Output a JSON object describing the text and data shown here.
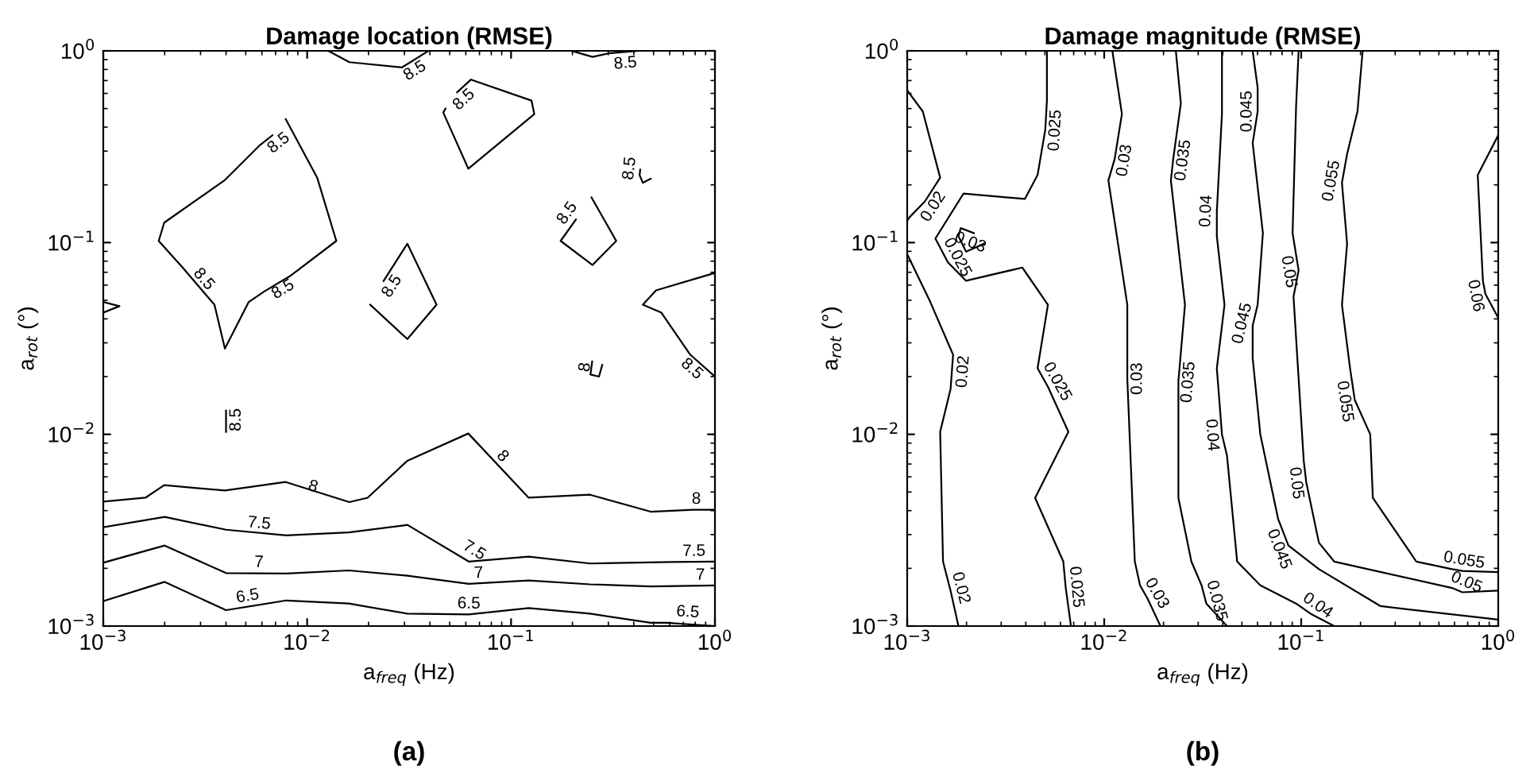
{
  "chart_data": [
    {
      "type": "line",
      "title": "Damage location (RMSE)",
      "xlabel": "a$_{freq}$ (Hz)",
      "ylabel": "a$_{rot}$ (°)",
      "log": "xy",
      "xlim": [
        0.001,
        1
      ],
      "ylim": [
        0.001,
        1
      ],
      "grid": false,
      "marker": "none",
      "line_style": "solid",
      "xticks": [
        {
          "value": 0.001,
          "label": "10$^{−3}$"
        },
        {
          "value": 0.01,
          "label": "10$^{−2}$"
        },
        {
          "value": 0.1,
          "label": "10$^{−1}$"
        },
        {
          "value": 1,
          "label": "10$^{0}$"
        }
      ],
      "yticks": [
        {
          "value": 0.001,
          "label": "10$^{−3}$"
        },
        {
          "value": 0.01,
          "label": "10$^{−2}$"
        },
        {
          "value": 0.1,
          "label": "10$^{−1}$"
        },
        {
          "value": 1,
          "label": "10$^{0}$"
        }
      ],
      "series": [
        {
          "color": "#000000",
          "x": [
            0.001,
            0.00161,
            0.00199,
            0.00395,
            0.00785,
            0.0161,
            0.0198,
            0.031,
            0.0617,
            0.122,
            0.244,
            0.484,
            0.782,
            1
          ],
          "values": [
            0.00446,
            0.00467,
            0.00543,
            0.00509,
            0.00564,
            0.00443,
            0.00467,
            0.00728,
            0.0101,
            0.00467,
            0.00484,
            0.00395,
            0.00404,
            0.00404
          ]
        },
        {
          "color": "#000000",
          "x": [
            0.001,
            0.002,
            0.004,
            0.0079,
            0.016,
            0.031,
            0.062,
            0.122,
            0.244,
            0.614,
            1
          ],
          "values": [
            0.00328,
            0.00371,
            0.00318,
            0.00297,
            0.00308,
            0.00337,
            0.00217,
            0.0023,
            0.00212,
            0.00216,
            0.00217
          ]
        },
        {
          "color": "#000000",
          "x": [
            0.001,
            0.002,
            0.004,
            0.0079,
            0.016,
            0.031,
            0.062,
            0.122,
            0.244,
            0.484,
            1
          ],
          "values": [
            0.00214,
            0.00263,
            0.00189,
            0.00188,
            0.00195,
            0.00183,
            0.00166,
            0.00173,
            0.00165,
            0.00161,
            0.00163
          ]
        },
        {
          "color": "#000000",
          "x": [
            0.001,
            0.002,
            0.004,
            0.0079,
            0.016,
            0.031,
            0.062,
            0.122,
            0.244,
            0.484,
            0.58,
            1
          ],
          "values": [
            0.00135,
            0.0017,
            0.00121,
            0.00136,
            0.00131,
            0.00116,
            0.00115,
            0.00124,
            0.00116,
            0.00104,
            0.00104,
            0.001
          ]
        },
        {
          "color": "#000000",
          "x": [
            0.00676,
            0.00582,
            0.00395,
            0.00199,
            0.00187,
            0.00245,
            0.00351,
            0.00395,
            0.00517,
            0.00618,
            0.00833,
            0.0139,
            0.0112,
            0.00785
          ],
          "values": [
            0.363,
            0.32,
            0.212,
            0.127,
            0.102,
            0.0741,
            0.0474,
            0.028,
            0.049,
            0.0557,
            0.0674,
            0.102,
            0.218,
            0.44
          ]
        },
        {
          "color": "#000000",
          "x": [
            0.0127,
            0.0161,
            0.0292,
            0.0394
          ],
          "values": [
            1,
            0.873,
            0.82,
            1
          ]
        },
        {
          "color": "#000000",
          "x": [
            0.198,
            0.251,
            0.3,
            0.42
          ],
          "values": [
            1,
            0.93,
            0.97,
            1
          ]
        },
        {
          "color": "#000000",
          "x": [
            0.0544,
            0.0636,
            0.126,
            0.13,
            0.0617,
            0.0465,
            0.0477
          ],
          "values": [
            0.608,
            0.708,
            0.55,
            0.468,
            0.243,
            0.477,
            0.5
          ]
        },
        {
          "color": "#000000",
          "x": [
            0.0237,
            0.031,
            0.0431,
            0.031,
            0.0204
          ],
          "values": [
            0.0631,
            0.0986,
            0.0474,
            0.0314,
            0.0474
          ]
        },
        {
          "color": "#000000",
          "x": [
            0.208,
            0.175,
            0.251,
            0.328,
            0.248
          ],
          "values": [
            0.132,
            0.102,
            0.0764,
            0.102,
            0.172
          ]
        },
        {
          "color": "#000000",
          "x": [
            0.43,
            0.427,
            0.443,
            0.484
          ],
          "values": [
            0.24,
            0.225,
            0.205,
            0.215
          ]
        },
        {
          "color": "#000000",
          "x": [
            1,
            0.514,
            0.443,
            0.546,
            0.757,
            1
          ],
          "values": [
            0.0695,
            0.0563,
            0.0474,
            0.0431,
            0.026,
            0.02
          ]
        },
        {
          "color": "#000000",
          "x": [
            0.001,
            0.0012,
            0.001
          ],
          "values": [
            0.049,
            0.0466,
            0.0431
          ]
        },
        {
          "color": "#000000",
          "x": [
            0.004,
            0.004
          ],
          "values": [
            0.0103,
            0.0133
          ]
        },
        {
          "color": "#000000",
          "x": [
            0.25,
            0.245,
            0.27,
            0.28
          ],
          "values": [
            0.024,
            0.0205,
            0.02,
            0.023
          ]
        }
      ],
      "annotations": [
        {
          "text": "8.5",
          "x": 0.00676,
          "y": 0.363
        },
        {
          "text": "8.5",
          "x": 0.00284,
          "y": 0.0593
        },
        {
          "text": "8.5",
          "x": 0.00718,
          "y": 0.0631
        },
        {
          "text": "8.5",
          "x": 0.0318,
          "y": 0.87
        },
        {
          "text": "8.5",
          "x": 0.36,
          "y": 0.97
        },
        {
          "text": "8.5",
          "x": 0.0544,
          "y": 0.608
        },
        {
          "text": "8.5",
          "x": 0.0237,
          "y": 0.0631
        },
        {
          "text": "8.5",
          "x": 0.208,
          "y": 0.132
        },
        {
          "text": "8.5",
          "x": 0.43,
          "y": 0.24
        },
        {
          "text": "8.5",
          "x": 0.004,
          "y": 0.0119
        },
        {
          "text": "8.5",
          "x": 0.83,
          "y": 0.024
        },
        {
          "text": "8",
          "x": 0.0103,
          "y": 0.00472
        },
        {
          "text": "8",
          "x": 0.0832,
          "y": 0.00704
        },
        {
          "text": "8",
          "x": 0.81,
          "y": 0.00404
        },
        {
          "text": "8",
          "x": 0.26,
          "y": 0.022
        },
        {
          "text": "7.5",
          "x": 0.00575,
          "y": 0.00302
        },
        {
          "text": "7.5",
          "x": 0.062,
          "y": 0.00222
        },
        {
          "text": "7.5",
          "x": 0.79,
          "y": 0.00216
        },
        {
          "text": "7",
          "x": 0.0058,
          "y": 0.00189
        },
        {
          "text": "7",
          "x": 0.0699,
          "y": 0.00166
        },
        {
          "text": "7",
          "x": 0.85,
          "y": 0.00162
        },
        {
          "text": "6.5",
          "x": 0.0052,
          "y": 0.00126
        },
        {
          "text": "6.5",
          "x": 0.062,
          "y": 0.00115
        },
        {
          "text": "6.5",
          "x": 0.73,
          "y": 0.00104
        },
        "(a)"
      ]
    },
    {
      "type": "line",
      "title": "Damage magnitude (RMSE)",
      "xlabel": "a$_{freq}$ (Hz)",
      "ylabel": "a$_{rot}$ (°)",
      "log": "xy",
      "xlim": [
        0.001,
        1
      ],
      "ylim": [
        0.001,
        1
      ],
      "grid": false,
      "marker": "none",
      "line_style": "solid",
      "xticks": [
        {
          "value": 0.001,
          "label": "10$^{−3}$"
        },
        {
          "value": 0.01,
          "label": "10$^{−2}$"
        },
        {
          "value": 0.1,
          "label": "10$^{−1}$"
        },
        {
          "value": 1,
          "label": "10$^{0}$"
        }
      ],
      "yticks": [
        {
          "value": 0.001,
          "label": "10$^{−3}$"
        },
        {
          "value": 0.01,
          "label": "10$^{−2}$"
        },
        {
          "value": 0.1,
          "label": "10$^{−1}$"
        },
        {
          "value": 1,
          "label": "10$^{0}$"
        }
      ],
      "series": [
        {
          "color": "#000000",
          "x": [
            0.001,
            0.0012,
            0.00147,
            0.00123,
            0.00103,
            0.001
          ],
          "values": [
            0.623,
            0.483,
            0.218,
            0.164,
            0.136,
            0.13
          ]
        },
        {
          "color": "#000000",
          "x": [
            0.001,
            0.00131,
            0.00171,
            0.00166,
            0.00147,
            0.00152,
            0.00166,
            0.00182
          ],
          "values": [
            0.0869,
            0.049,
            0.026,
            0.0172,
            0.0103,
            0.00217,
            0.00153,
            0.001
          ]
        },
        {
          "color": "#000000",
          "x": [
            0.00512,
            0.00512,
            0.00502,
            0.00459,
            0.00396,
            0.00193,
            0.00139,
            0.00161,
            0.00199,
            0.00384,
            0.00518,
            0.00459,
            0.00518,
            0.00658,
            0.00446,
            0.0062,
            0.00638,
            0.00678
          ],
          "values": [
            1,
            0.55,
            0.387,
            0.225,
            0.169,
            0.18,
            0.105,
            0.0789,
            0.0632,
            0.0741,
            0.0474,
            0.0221,
            0.0177,
            0.0103,
            0.00466,
            0.00217,
            0.00158,
            0.001
          ]
        },
        {
          "color": "#000000",
          "x": [
            0.00218,
            0.00187,
            0.00182,
            0.00199,
            0.00245
          ],
          "values": [
            0.112,
            0.119,
            0.108,
            0.0897,
            0.0986
          ]
        },
        {
          "color": "#000000",
          "x": [
            0.011,
            0.0123,
            0.0113,
            0.0105,
            0.0131,
            0.0131,
            0.0143,
            0.0152,
            0.0166,
            0.0193
          ],
          "values": [
            1,
            0.469,
            0.273,
            0.211,
            0.0474,
            0.0195,
            0.00217,
            0.00163,
            0.00139,
            0.001
          ]
        },
        {
          "color": "#000000",
          "x": [
            0.0231,
            0.0245,
            0.0224,
            0.0218,
            0.0257,
            0.0238,
            0.0238,
            0.0277,
            0.0312,
            0.033,
            0.042
          ],
          "values": [
            1,
            0.532,
            0.273,
            0.211,
            0.0474,
            0.0189,
            0.00466,
            0.00217,
            0.00163,
            0.00131,
            0.001
          ]
        },
        {
          "color": "#000000",
          "x": [
            0.0396,
            0.0396,
            0.0373,
            0.0373,
            0.0408,
            0.0373,
            0.0396,
            0.042,
            0.0473,
            0.062,
            0.0942,
            0.113,
            0.147
          ],
          "values": [
            1,
            0.469,
            0.145,
            0.108,
            0.0474,
            0.0221,
            0.01,
            0.00775,
            0.00217,
            0.00163,
            0.00131,
            0.00115,
            0.001
          ]
        },
        {
          "color": "#000000",
          "x": [
            0.0567,
            0.0601,
            0.0601,
            0.0567,
            0.0639,
            0.0601,
            0.0567,
            0.0567,
            0.062,
            0.0764,
            0.0861,
            0.123,
            0.253,
            1
          ],
          "values": [
            1,
            0.644,
            0.483,
            0.33,
            0.112,
            0.0474,
            0.0368,
            0.025,
            0.01,
            0.00361,
            0.00263,
            0.00198,
            0.00127,
            0.00108
          ]
        },
        {
          "color": "#000000",
          "x": [
            0.097,
            0.0942,
            0.0904,
            0.097,
            0.0914,
            0.103,
            0.106,
            0.123,
            0.147,
            0.583,
            0.658,
            1
          ],
          "values": [
            1,
            0.515,
            0.112,
            0.0718,
            0.0522,
            0.00728,
            0.00564,
            0.00272,
            0.00217,
            0.00158,
            0.0015,
            0.00153
          ]
        },
        {
          "color": "#000000",
          "x": [
            0.205,
            0.193,
            0.171,
            0.161,
            0.171,
            0.161,
            0.177,
            0.187,
            0.224,
            0.231,
            0.384,
            0.583,
            0.658,
            1
          ],
          "values": [
            1,
            0.483,
            0.29,
            0.205,
            0.0986,
            0.0474,
            0.0221,
            0.0151,
            0.01,
            0.00466,
            0.00217,
            0.00198,
            0.00194,
            0.00191
          ]
        },
        {
          "color": "#000000",
          "x": [
            1,
            0.787,
            0.836,
            0.861,
            1
          ],
          "values": [
            0.363,
            0.225,
            0.0632,
            0.054,
            0.0405
          ]
        }
      ],
      "annotations": [
        {
          "text": "0.02",
          "x": 0.00123,
          "y": 0.164
        },
        {
          "text": "0.02",
          "x": 0.00171,
          "y": 0.0214
        },
        {
          "text": "0.02",
          "x": 0.00166,
          "y": 0.00153
        },
        {
          "text": "0.025",
          "x": 0.00502,
          "y": 0.387
        },
        {
          "text": "0.025",
          "x": 0.00161,
          "y": 0.0789
        },
        {
          "text": "0.025",
          "x": 0.00518,
          "y": 0.0177
        },
        {
          "text": "0.025",
          "x": 0.00638,
          "y": 0.00158
        },
        {
          "text": "0.03",
          "x": 0.00218,
          "y": 0.112
        },
        {
          "text": "0.03",
          "x": 0.0113,
          "y": 0.273
        },
        {
          "text": "0.03",
          "x": 0.0131,
          "y": 0.0195
        },
        {
          "text": "0.03",
          "x": 0.0166,
          "y": 0.00139
        },
        {
          "text": "0.035",
          "x": 0.0224,
          "y": 0.273
        },
        {
          "text": "0.035",
          "x": 0.0238,
          "y": 0.0189
        },
        {
          "text": "0.035",
          "x": 0.033,
          "y": 0.00131
        },
        {
          "text": "0.04",
          "x": 0.0373,
          "y": 0.145
        },
        {
          "text": "0.04",
          "x": 0.0396,
          "y": 0.01
        },
        {
          "text": "0.04",
          "x": 0.113,
          "y": 0.00115
        },
        {
          "text": "0.045",
          "x": 0.0601,
          "y": 0.483
        },
        {
          "text": "0.045",
          "x": 0.0567,
          "y": 0.0368
        },
        {
          "text": "0.045",
          "x": 0.0861,
          "y": 0.00263
        },
        {
          "text": "0.05",
          "x": 0.097,
          "y": 0.0718
        },
        {
          "text": "0.05",
          "x": 0.106,
          "y": 0.00564
        },
        {
          "text": "0.05",
          "x": 0.658,
          "y": 0.0015
        },
        {
          "text": "0.055",
          "x": 0.161,
          "y": 0.205
        },
        {
          "text": "0.055",
          "x": 0.187,
          "y": 0.0151
        },
        {
          "text": "0.055",
          "x": 0.658,
          "y": 0.00194
        },
        {
          "text": "0.06",
          "x": 0.861,
          "y": 0.054
        },
        "(b)"
      ]
    }
  ]
}
